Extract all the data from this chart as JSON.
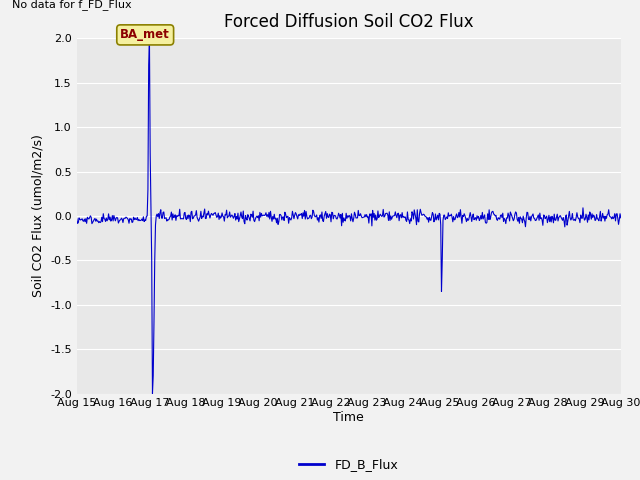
{
  "title": "Forced Diffusion Soil CO2 Flux",
  "no_data_label": "No data for f_FD_Flux",
  "xlabel": "Time",
  "ylabel": "Soil CO2 Flux (umol/m2/s)",
  "ylim": [
    -2.0,
    2.0
  ],
  "yticks": [
    -2.0,
    -1.5,
    -1.0,
    -0.5,
    0.0,
    0.5,
    1.0,
    1.5,
    2.0
  ],
  "x_tick_labels": [
    "Aug 15",
    "Aug 16",
    "Aug 17",
    "Aug 18",
    "Aug 19",
    "Aug 20",
    "Aug 21",
    "Aug 22",
    "Aug 23",
    "Aug 24",
    "Aug 25",
    "Aug 26",
    "Aug 27",
    "Aug 28",
    "Aug 29",
    "Aug 30"
  ],
  "line_color": "#0000cc",
  "line_width": 0.8,
  "legend_label": "FD_B_Flux",
  "ba_met_label": "BA_met",
  "bg_color": "#e8e8e8",
  "fig_bg_color": "#f2f2f2",
  "title_fontsize": 12,
  "label_fontsize": 9,
  "tick_fontsize": 8
}
